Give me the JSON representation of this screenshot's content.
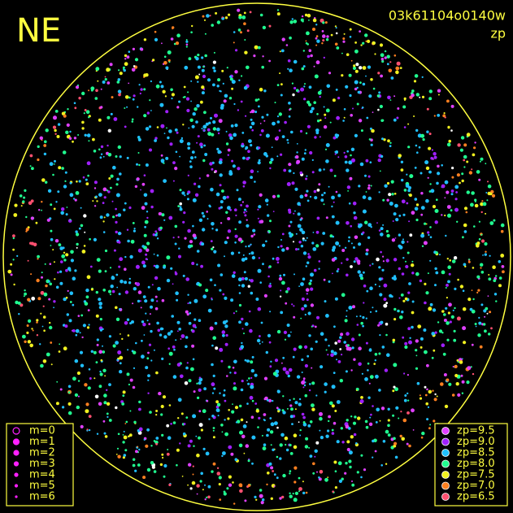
{
  "labels": {
    "direction": "NE",
    "image_id": "03k61104o0140w",
    "mode": "zp"
  },
  "magnitude_legend": {
    "color": "#ff20ff",
    "items": [
      "m=0",
      "m=1",
      "m=2",
      "m=3",
      "m=4",
      "m=5",
      "m=6"
    ]
  },
  "zp_legend": {
    "items": [
      {
        "label": "zp=9.5",
        "color": "#e040ff"
      },
      {
        "label": "zp=9.0",
        "color": "#a020ff"
      },
      {
        "label": "zp=8.5",
        "color": "#20c0ff"
      },
      {
        "label": "zp=8.0",
        "color": "#20ff90"
      },
      {
        "label": "zp=7.5",
        "color": "#f0f020"
      },
      {
        "label": "zp=7.0",
        "color": "#ff8020"
      },
      {
        "label": "zp=6.5",
        "color": "#ff5070"
      }
    ]
  }
}
